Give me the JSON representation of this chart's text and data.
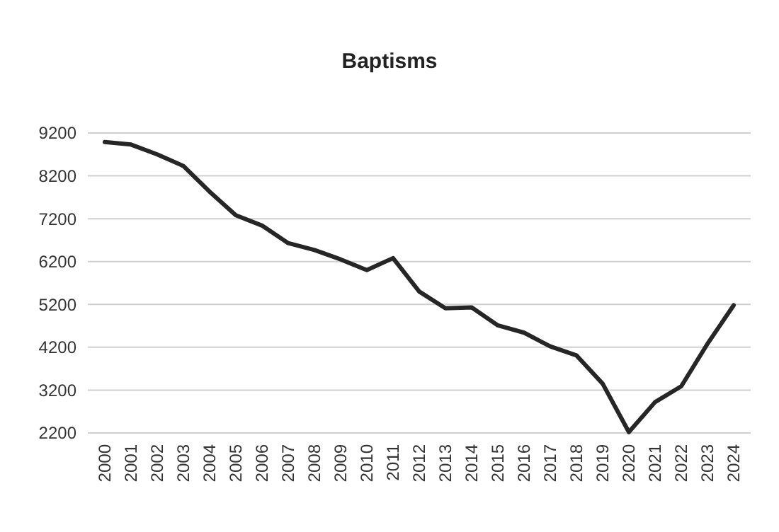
{
  "chart_data": {
    "type": "line",
    "title": "Baptisms",
    "categories": [
      "2000",
      "2001",
      "2002",
      "2003",
      "2004",
      "2005",
      "2006",
      "2007",
      "2008",
      "2009",
      "2010",
      "2011",
      "2012",
      "2013",
      "2014",
      "2015",
      "2016",
      "2017",
      "2018",
      "2019",
      "2020",
      "2021",
      "2022",
      "2023",
      "2024"
    ],
    "series": [
      {
        "color": "#262626",
        "values": [
          8990,
          8930,
          8700,
          8430,
          7830,
          7280,
          7040,
          6630,
          6470,
          6250,
          6000,
          6280,
          5500,
          5110,
          5130,
          4710,
          4540,
          4220,
          4010,
          3350,
          2220,
          2920,
          3290,
          4280,
          5180
        ]
      }
    ],
    "ylim": [
      2200,
      9200
    ],
    "yticks": [
      2200,
      3200,
      4200,
      5200,
      6200,
      7200,
      8200,
      9200
    ],
    "grid": "y",
    "marker": "none",
    "line_style": "solid"
  }
}
